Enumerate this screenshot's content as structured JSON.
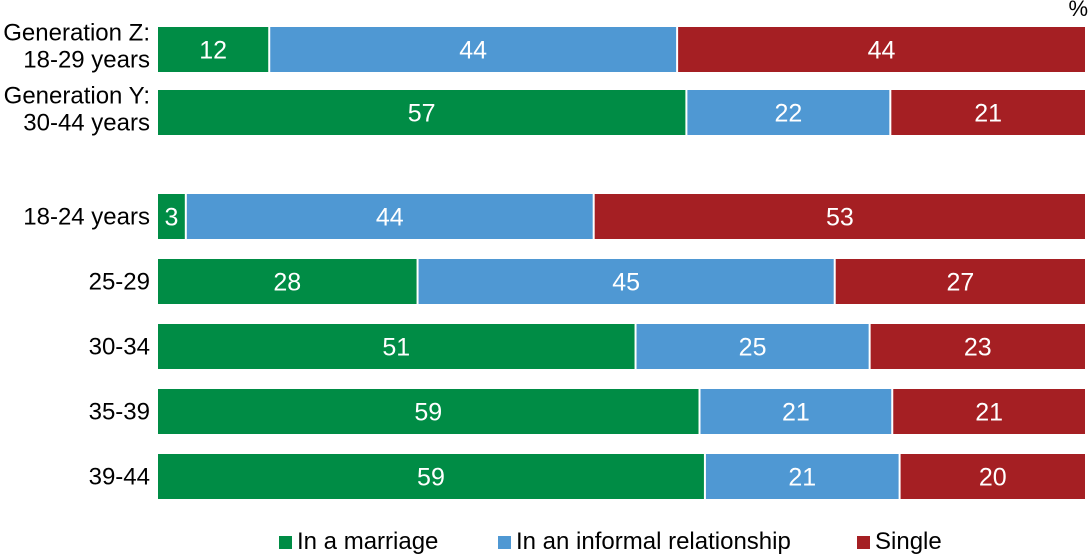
{
  "chart_data": {
    "type": "bar",
    "orientation": "horizontal",
    "stacked": true,
    "unit_label": "%",
    "categories": [
      [
        "Generation Z:",
        "18-29 years"
      ],
      [
        "Generation Y:",
        "30-44 years"
      ],
      [
        "18-24 years"
      ],
      [
        "25-29"
      ],
      [
        "30-34"
      ],
      [
        "35-39"
      ],
      [
        "39-44"
      ]
    ],
    "series": [
      {
        "name": "In a marriage",
        "color": "#008c45",
        "values": [
          12,
          57,
          3,
          28,
          51,
          59,
          59
        ]
      },
      {
        "name": "In an informal relationship",
        "color": "#4f98d3",
        "values": [
          44,
          22,
          44,
          45,
          25,
          21,
          21
        ]
      },
      {
        "name": "Single",
        "color": "#a51f23",
        "values": [
          44,
          21,
          53,
          27,
          23,
          21,
          20
        ]
      }
    ],
    "legend_position": "bottom",
    "grid": false
  }
}
